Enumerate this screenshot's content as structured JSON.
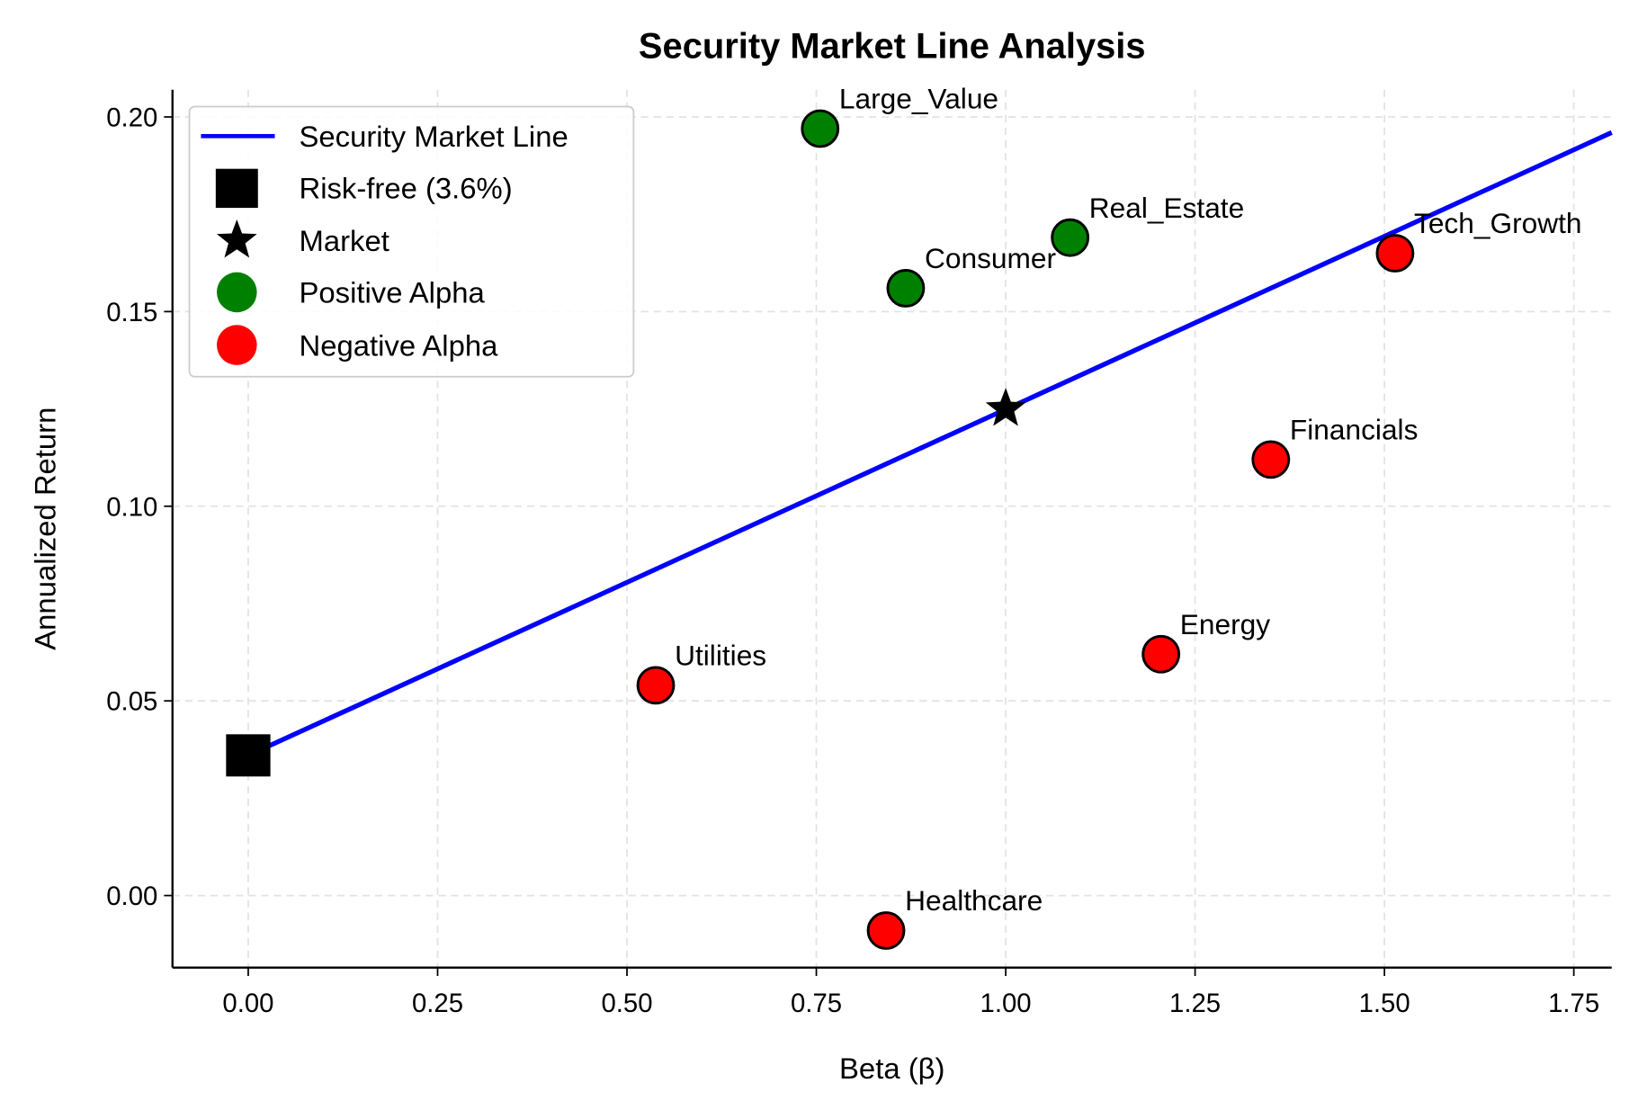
{
  "chart_data": {
    "type": "scatter",
    "title": "Security Market Line Analysis",
    "xlabel": "Beta (β)",
    "ylabel": "Annualized Return",
    "xlim": [
      -0.1,
      1.8
    ],
    "ylim": [
      -0.0185,
      0.207
    ],
    "xticks": [
      "0.00",
      "0.25",
      "0.50",
      "0.75",
      "1.00",
      "1.25",
      "1.50",
      "1.75"
    ],
    "yticks": [
      "0.00",
      "0.05",
      "0.10",
      "0.15",
      "0.20"
    ],
    "grid": true,
    "legend_placement": "top-left",
    "legend": [
      "Security Market Line",
      "Risk-free (3.6%)",
      "Market",
      "Positive Alpha",
      "Negative Alpha"
    ],
    "sml": {
      "x": [
        0,
        1.8
      ],
      "y": [
        0.036,
        0.196
      ],
      "color": "#0000ff"
    },
    "risk_free": {
      "x": 0,
      "y": 0.036
    },
    "market": {
      "x": 1.0,
      "y": 0.125
    },
    "colors": {
      "positive": "#008000",
      "negative": "#ff0000"
    },
    "points": [
      {
        "name": "Large_Value",
        "beta": 0.755,
        "return": 0.197,
        "alpha": "positive"
      },
      {
        "name": "Consumer",
        "beta": 0.868,
        "return": 0.156,
        "alpha": "positive"
      },
      {
        "name": "Real_Estate",
        "beta": 1.085,
        "return": 0.169,
        "alpha": "positive"
      },
      {
        "name": "Tech_Growth",
        "beta": 1.514,
        "return": 0.165,
        "alpha": "negative"
      },
      {
        "name": "Financials",
        "beta": 1.35,
        "return": 0.112,
        "alpha": "negative"
      },
      {
        "name": "Energy",
        "beta": 1.205,
        "return": 0.062,
        "alpha": "negative"
      },
      {
        "name": "Utilities",
        "beta": 0.538,
        "return": 0.054,
        "alpha": "negative"
      },
      {
        "name": "Healthcare",
        "beta": 0.842,
        "return": -0.009,
        "alpha": "negative"
      }
    ]
  }
}
